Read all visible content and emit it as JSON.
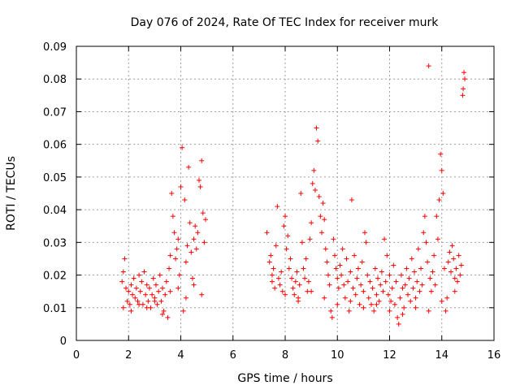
{
  "chart_data": {
    "type": "scatter",
    "title": "Day 076 of 2024, Rate Of TEC Index for receiver murk",
    "xlabel": "GPS time / hours",
    "ylabel": "ROTI / TECUs",
    "xlim": [
      0,
      16
    ],
    "ylim": [
      0,
      0.09
    ],
    "x_ticks": [
      0,
      2,
      4,
      6,
      8,
      10,
      12,
      14,
      16
    ],
    "y_ticks": [
      0,
      0.01,
      0.02,
      0.03,
      0.04,
      0.05,
      0.06,
      0.07,
      0.08,
      0.09
    ],
    "x_tick_labels": [
      "0",
      "2",
      "4",
      "6",
      "8",
      "10",
      "12",
      "14",
      "16"
    ],
    "y_tick_labels": [
      "0",
      "0.01",
      "0.02",
      "0.03",
      "0.04",
      "0.05",
      "0.06",
      "0.07",
      "0.08",
      "0.09"
    ],
    "grid": true,
    "marker": "+",
    "marker_color": "#ff0000",
    "series": [
      {
        "name": "ROTI",
        "points": [
          [
            1.75,
            0.018
          ],
          [
            1.8,
            0.021
          ],
          [
            1.85,
            0.025
          ],
          [
            1.9,
            0.016
          ],
          [
            1.95,
            0.012
          ],
          [
            2.0,
            0.015
          ],
          [
            2.05,
            0.011
          ],
          [
            2.1,
            0.017
          ],
          [
            2.15,
            0.014
          ],
          [
            2.2,
            0.019
          ],
          [
            2.25,
            0.013
          ],
          [
            2.3,
            0.016
          ],
          [
            2.35,
            0.012
          ],
          [
            2.4,
            0.02
          ],
          [
            2.45,
            0.015
          ],
          [
            2.5,
            0.018
          ],
          [
            2.55,
            0.011
          ],
          [
            2.6,
            0.021
          ],
          [
            2.65,
            0.014
          ],
          [
            2.7,
            0.017
          ],
          [
            2.75,
            0.012
          ],
          [
            2.8,
            0.016
          ],
          [
            2.85,
            0.01
          ],
          [
            2.9,
            0.014
          ],
          [
            2.95,
            0.019
          ],
          [
            3.0,
            0.013
          ],
          [
            3.05,
            0.017
          ],
          [
            3.1,
            0.011
          ],
          [
            3.15,
            0.015
          ],
          [
            3.2,
            0.02
          ],
          [
            3.25,
            0.012
          ],
          [
            3.3,
            0.016
          ],
          [
            3.35,
            0.009
          ],
          [
            3.4,
            0.014
          ],
          [
            3.45,
            0.018
          ],
          [
            3.5,
            0.007
          ],
          [
            3.55,
            0.022
          ],
          [
            3.6,
            0.026
          ],
          [
            3.65,
            0.045
          ],
          [
            3.7,
            0.038
          ],
          [
            3.75,
            0.033
          ],
          [
            3.8,
            0.025
          ],
          [
            3.85,
            0.028
          ],
          [
            3.9,
            0.031
          ],
          [
            3.95,
            0.02
          ],
          [
            4.0,
            0.047
          ],
          [
            4.05,
            0.059
          ],
          [
            4.1,
            0.009
          ],
          [
            4.15,
            0.043
          ],
          [
            4.2,
            0.024
          ],
          [
            4.25,
            0.029
          ],
          [
            4.3,
            0.053
          ],
          [
            4.35,
            0.036
          ],
          [
            4.4,
            0.027
          ],
          [
            4.45,
            0.019
          ],
          [
            4.5,
            0.031
          ],
          [
            4.55,
            0.035
          ],
          [
            4.6,
            0.028
          ],
          [
            4.65,
            0.033
          ],
          [
            4.7,
            0.049
          ],
          [
            4.75,
            0.047
          ],
          [
            4.8,
            0.055
          ],
          [
            4.85,
            0.039
          ],
          [
            4.9,
            0.03
          ],
          [
            4.95,
            0.037
          ],
          [
            1.8,
            0.01
          ],
          [
            2.1,
            0.009
          ],
          [
            2.4,
            0.011
          ],
          [
            2.7,
            0.01
          ],
          [
            3.0,
            0.012
          ],
          [
            3.3,
            0.008
          ],
          [
            3.6,
            0.015
          ],
          [
            3.9,
            0.016
          ],
          [
            4.2,
            0.013
          ],
          [
            4.5,
            0.017
          ],
          [
            4.8,
            0.014
          ],
          [
            7.3,
            0.033
          ],
          [
            7.4,
            0.024
          ],
          [
            7.45,
            0.026
          ],
          [
            7.5,
            0.02
          ],
          [
            7.55,
            0.022
          ],
          [
            7.6,
            0.016
          ],
          [
            7.65,
            0.029
          ],
          [
            7.7,
            0.041
          ],
          [
            7.75,
            0.019
          ],
          [
            7.8,
            0.017
          ],
          [
            7.85,
            0.021
          ],
          [
            7.9,
            0.015
          ],
          [
            7.95,
            0.035
          ],
          [
            8.0,
            0.038
          ],
          [
            8.05,
            0.028
          ],
          [
            8.1,
            0.032
          ],
          [
            8.15,
            0.022
          ],
          [
            8.2,
            0.025
          ],
          [
            8.25,
            0.019
          ],
          [
            8.3,
            0.016
          ],
          [
            8.35,
            0.014
          ],
          [
            8.4,
            0.018
          ],
          [
            8.45,
            0.021
          ],
          [
            8.5,
            0.013
          ],
          [
            8.55,
            0.017
          ],
          [
            8.6,
            0.045
          ],
          [
            8.65,
            0.03
          ],
          [
            8.7,
            0.022
          ],
          [
            8.75,
            0.019
          ],
          [
            8.8,
            0.025
          ],
          [
            8.85,
            0.015
          ],
          [
            8.9,
            0.018
          ],
          [
            8.95,
            0.031
          ],
          [
            9.0,
            0.036
          ],
          [
            9.05,
            0.048
          ],
          [
            9.1,
            0.052
          ],
          [
            9.15,
            0.046
          ],
          [
            9.2,
            0.065
          ],
          [
            9.25,
            0.061
          ],
          [
            9.3,
            0.044
          ],
          [
            9.35,
            0.038
          ],
          [
            9.4,
            0.033
          ],
          [
            9.45,
            0.042
          ],
          [
            9.5,
            0.037
          ],
          [
            9.55,
            0.028
          ],
          [
            9.6,
            0.024
          ],
          [
            9.65,
            0.02
          ],
          [
            9.7,
            0.017
          ],
          [
            9.75,
            0.009
          ],
          [
            9.8,
            0.007
          ],
          [
            9.85,
            0.031
          ],
          [
            9.9,
            0.026
          ],
          [
            9.95,
            0.022
          ],
          [
            10.0,
            0.019
          ],
          [
            10.05,
            0.016
          ],
          [
            10.1,
            0.023
          ],
          [
            10.15,
            0.02
          ],
          [
            10.2,
            0.028
          ],
          [
            10.25,
            0.017
          ],
          [
            10.3,
            0.013
          ],
          [
            10.35,
            0.025
          ],
          [
            10.4,
            0.018
          ],
          [
            10.45,
            0.009
          ],
          [
            10.5,
            0.021
          ],
          [
            10.55,
            0.043
          ],
          [
            10.6,
            0.016
          ],
          [
            10.65,
            0.026
          ],
          [
            10.7,
            0.014
          ],
          [
            10.75,
            0.019
          ],
          [
            10.8,
            0.022
          ],
          [
            10.85,
            0.011
          ],
          [
            10.9,
            0.017
          ],
          [
            10.95,
            0.024
          ],
          [
            11.0,
            0.015
          ],
          [
            11.05,
            0.033
          ],
          [
            11.1,
            0.03
          ],
          [
            11.15,
            0.02
          ],
          [
            11.2,
            0.013
          ],
          [
            11.25,
            0.018
          ],
          [
            11.3,
            0.011
          ],
          [
            11.35,
            0.016
          ],
          [
            11.4,
            0.009
          ],
          [
            11.45,
            0.022
          ],
          [
            11.5,
            0.014
          ],
          [
            11.55,
            0.019
          ],
          [
            11.6,
            0.012
          ],
          [
            11.65,
            0.017
          ],
          [
            11.7,
            0.021
          ],
          [
            11.75,
            0.015
          ],
          [
            11.8,
            0.031
          ],
          [
            11.85,
            0.018
          ],
          [
            11.9,
            0.026
          ],
          [
            11.95,
            0.014
          ],
          [
            12.0,
            0.02
          ],
          [
            12.05,
            0.012
          ],
          [
            12.1,
            0.016
          ],
          [
            12.15,
            0.023
          ],
          [
            12.2,
            0.011
          ],
          [
            12.25,
            0.018
          ],
          [
            12.3,
            0.007
          ],
          [
            12.35,
            0.005
          ],
          [
            12.4,
            0.013
          ],
          [
            12.45,
            0.02
          ],
          [
            12.5,
            0.016
          ],
          [
            12.55,
            0.01
          ],
          [
            12.6,
            0.017
          ],
          [
            12.65,
            0.022
          ],
          [
            12.7,
            0.014
          ],
          [
            12.75,
            0.019
          ],
          [
            12.8,
            0.012
          ],
          [
            12.85,
            0.025
          ],
          [
            12.9,
            0.016
          ],
          [
            12.95,
            0.021
          ],
          [
            13.0,
            0.013
          ],
          [
            13.05,
            0.018
          ],
          [
            13.1,
            0.028
          ],
          [
            13.15,
            0.015
          ],
          [
            13.2,
            0.022
          ],
          [
            13.25,
            0.017
          ],
          [
            13.3,
            0.033
          ],
          [
            13.35,
            0.038
          ],
          [
            13.4,
            0.03
          ],
          [
            13.45,
            0.024
          ],
          [
            13.5,
            0.084
          ],
          [
            13.55,
            0.019
          ],
          [
            13.6,
            0.015
          ],
          [
            13.65,
            0.021
          ],
          [
            13.7,
            0.026
          ],
          [
            13.75,
            0.017
          ],
          [
            13.8,
            0.038
          ],
          [
            13.85,
            0.031
          ],
          [
            13.9,
            0.043
          ],
          [
            13.95,
            0.057
          ],
          [
            14.0,
            0.052
          ],
          [
            14.05,
            0.045
          ],
          [
            14.1,
            0.022
          ],
          [
            14.15,
            0.009
          ],
          [
            14.2,
            0.013
          ],
          [
            14.25,
            0.024
          ],
          [
            14.3,
            0.027
          ],
          [
            14.35,
            0.021
          ],
          [
            14.4,
            0.029
          ],
          [
            14.45,
            0.025
          ],
          [
            14.5,
            0.019
          ],
          [
            14.55,
            0.022
          ],
          [
            14.6,
            0.018
          ],
          [
            14.65,
            0.026
          ],
          [
            14.7,
            0.02
          ],
          [
            14.75,
            0.023
          ],
          [
            14.8,
            0.075
          ],
          [
            14.82,
            0.077
          ],
          [
            14.85,
            0.082
          ],
          [
            14.88,
            0.08
          ],
          [
            7.5,
            0.018
          ],
          [
            8.0,
            0.014
          ],
          [
            8.5,
            0.012
          ],
          [
            9.0,
            0.015
          ],
          [
            9.5,
            0.013
          ],
          [
            10.0,
            0.011
          ],
          [
            10.5,
            0.012
          ],
          [
            11.0,
            0.01
          ],
          [
            11.5,
            0.011
          ],
          [
            12.0,
            0.009
          ],
          [
            12.5,
            0.008
          ],
          [
            13.0,
            0.01
          ],
          [
            13.5,
            0.009
          ],
          [
            14.0,
            0.012
          ],
          [
            14.5,
            0.015
          ]
        ]
      }
    ]
  }
}
